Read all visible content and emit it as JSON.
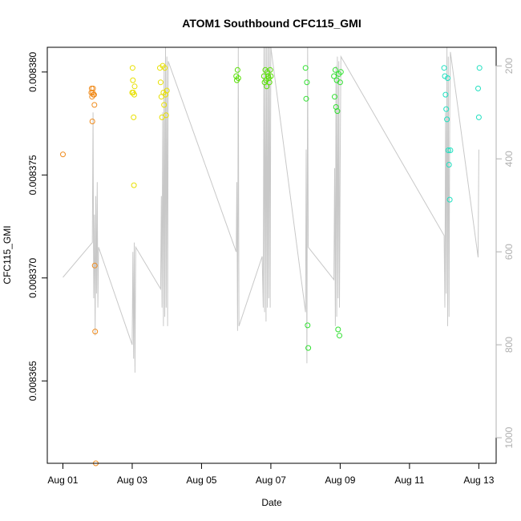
{
  "chart_data": {
    "type": "scatter",
    "title": "ATOM1 Southbound CFC115_GMI",
    "xlabel": "Date",
    "ylabel": "CFC115_GMI",
    "x_ticks": [
      "Aug 01",
      "Aug 03",
      "Aug 05",
      "Aug 07",
      "Aug 09",
      "Aug 11",
      "Aug 13"
    ],
    "x_tick_days": [
      1,
      3,
      5,
      7,
      9,
      11,
      13
    ],
    "xlim": [
      0.55,
      13.5
    ],
    "ylim": [
      0.008361,
      0.0083812
    ],
    "y_ticks": [
      "0.008365",
      "0.008370",
      "0.008375",
      "0.008380"
    ],
    "y_tick_values": [
      0.008365,
      0.00837,
      0.008375,
      0.00838
    ],
    "secondary_axis": {
      "side": "right",
      "color": "#b0b0b0",
      "ylim": [
        1055,
        160
      ],
      "ticks": [
        "200",
        "400",
        "600",
        "800",
        "1000"
      ],
      "tick_values": [
        200,
        400,
        600,
        800,
        1000
      ]
    },
    "pressure_trace": {
      "color": "#c8c8c8",
      "day": [
        1.0,
        1.85,
        1.87,
        1.89,
        1.91,
        1.93,
        1.95,
        1.97,
        1.99,
        2.01,
        2.03,
        3.0,
        3.02,
        3.04,
        3.06,
        3.08,
        3.1,
        3.82,
        3.84,
        3.86,
        3.88,
        3.9,
        3.92,
        3.94,
        3.96,
        3.98,
        4.0,
        4.02,
        4.04,
        6.0,
        6.02,
        6.04,
        6.06,
        6.08,
        6.75,
        6.78,
        6.8,
        6.82,
        6.84,
        6.86,
        6.88,
        6.9,
        6.92,
        6.94,
        6.96,
        6.98,
        7.0,
        8.0,
        8.02,
        8.04,
        8.06,
        8.08,
        8.82,
        8.84,
        8.86,
        8.88,
        8.9,
        8.92,
        8.94,
        8.96,
        8.98,
        9.0,
        9.02,
        12.0,
        12.02,
        12.04,
        12.06,
        12.08,
        12.1,
        12.12,
        12.14,
        12.16,
        12.18,
        12.98,
        13.0
      ],
      "pressure": [
        655,
        580,
        300,
        700,
        520,
        780,
        480,
        690,
        450,
        720,
        590,
        800,
        600,
        830,
        580,
        860,
        590,
        680,
        480,
        720,
        300,
        760,
        200,
        740,
        160,
        720,
        180,
        760,
        190,
        600,
        450,
        770,
        160,
        760,
        610,
        720,
        160,
        730,
        160,
        750,
        160,
        720,
        160,
        700,
        160,
        720,
        160,
        730,
        380,
        840,
        160,
        590,
        660,
        420,
        760,
        200,
        740,
        180,
        700,
        190,
        720,
        410,
        180,
        565,
        720,
        300,
        690,
        160,
        760,
        180,
        740,
        300,
        170,
        612,
        380
      ]
    },
    "series": [
      {
        "color": "#f08c1e",
        "x": [
          1.0,
          1.82,
          1.83,
          1.84,
          1.85,
          1.86,
          1.87,
          1.88,
          1.89,
          1.9,
          1.91,
          1.92,
          1.93,
          1.95
        ],
        "y": [
          0.008376,
          0.008379,
          0.0083792,
          0.0083788,
          0.0083776,
          0.008379,
          0.0083792,
          0.0083789,
          0.0083789,
          0.0083789,
          0.0083784,
          0.0083706,
          0.0083674,
          0.008361
        ]
      },
      {
        "color": "#e8e000",
        "x": [
          3.0,
          3.01,
          3.02,
          3.03,
          3.04,
          3.05,
          3.06,
          3.07,
          3.8,
          3.82,
          3.84,
          3.86,
          3.88,
          3.9,
          3.92,
          3.94,
          3.96,
          3.98,
          4.0
        ],
        "y": [
          0.008379,
          0.0083802,
          0.0083796,
          0.008379,
          0.0083778,
          0.0083745,
          0.0083789,
          0.0083793,
          0.0083802,
          0.0083795,
          0.0083788,
          0.0083778,
          0.0083803,
          0.008379,
          0.0083784,
          0.0083802,
          0.0083789,
          0.0083779,
          0.0083791
        ]
      },
      {
        "color": "#55e000",
        "x": [
          6.0,
          6.02,
          6.04,
          6.06,
          6.8,
          6.82,
          6.84,
          6.86,
          6.88,
          6.9,
          6.92,
          6.94,
          6.96,
          6.98,
          7.0
        ],
        "y": [
          0.0083798,
          0.0083796,
          0.0083801,
          0.0083797,
          0.0083798,
          0.0083795,
          0.0083801,
          0.0083796,
          0.0083793,
          0.00838,
          0.0083798,
          0.0083797,
          0.0083795,
          0.0083801,
          0.0083798
        ]
      },
      {
        "color": "#30e030",
        "x": [
          8.0,
          8.02,
          8.04,
          8.06,
          8.08,
          8.82,
          8.84,
          8.86,
          8.88,
          8.9,
          8.92,
          8.94,
          8.96,
          8.98,
          9.0,
          9.02
        ],
        "y": [
          0.0083802,
          0.0083787,
          0.0083795,
          0.0083677,
          0.0083666,
          0.0083798,
          0.0083788,
          0.0083801,
          0.0083783,
          0.0083796,
          0.0083781,
          0.0083675,
          0.0083799,
          0.0083672,
          0.0083795,
          0.00838
        ]
      },
      {
        "color": "#20e0c0",
        "x": [
          12.0,
          12.02,
          12.04,
          12.06,
          12.08,
          12.1,
          12.12,
          12.14,
          12.16,
          12.18,
          12.98,
          13.0,
          13.02
        ],
        "y": [
          0.0083802,
          0.0083798,
          0.0083789,
          0.0083782,
          0.0083777,
          0.0083797,
          0.0083762,
          0.0083755,
          0.0083738,
          0.0083762,
          0.0083792,
          0.0083778,
          0.0083802
        ]
      }
    ]
  }
}
